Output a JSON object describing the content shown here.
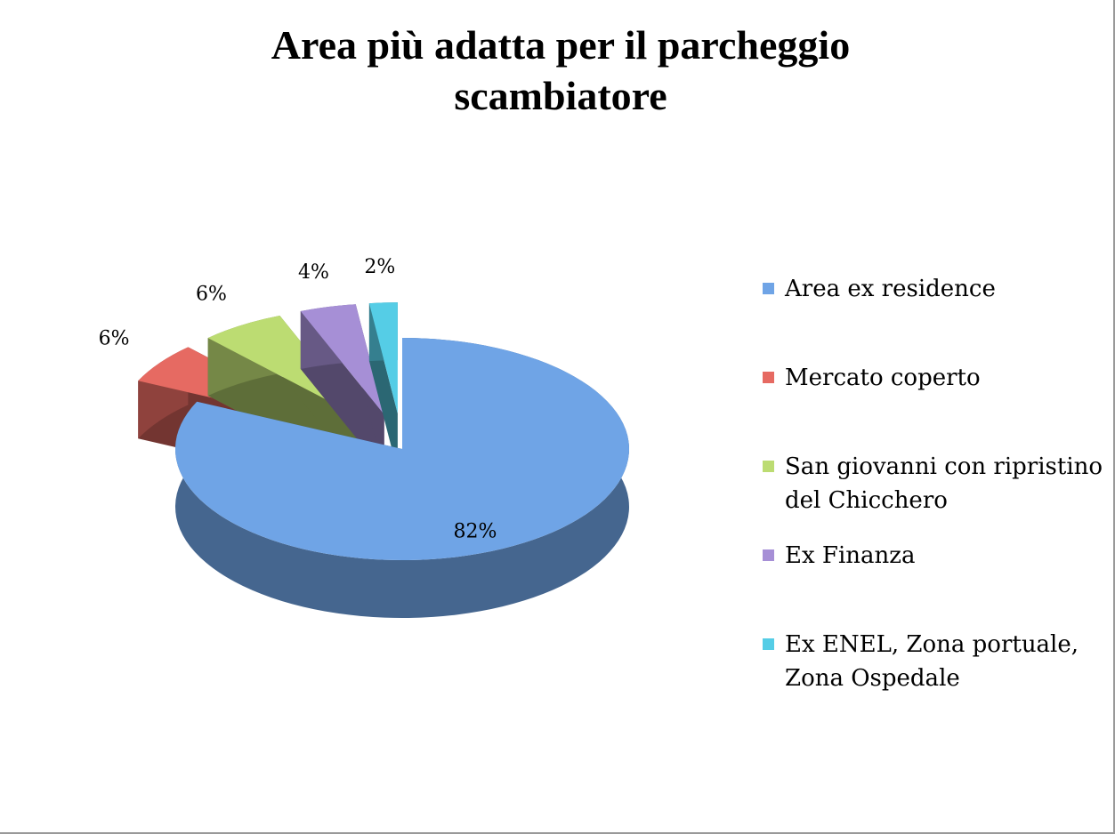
{
  "chart_data": {
    "type": "pie3d",
    "title": "Area più adatta per il parcheggio scambiatore",
    "categories": [
      "Area ex residence",
      "Mercato coperto",
      "San giovanni con ripristino del Chicchero",
      "Ex Finanza",
      "Ex ENEL, Zona portuale, Zona Ospedale"
    ],
    "values": [
      82,
      6,
      6,
      4,
      2
    ],
    "value_labels": [
      "82%",
      "6%",
      "6%",
      "4%",
      "2%"
    ],
    "colors": [
      "#6fa4e6",
      "#e66a62",
      "#bcdc72",
      "#a68fd6",
      "#55cde6"
    ],
    "legend": "right"
  }
}
